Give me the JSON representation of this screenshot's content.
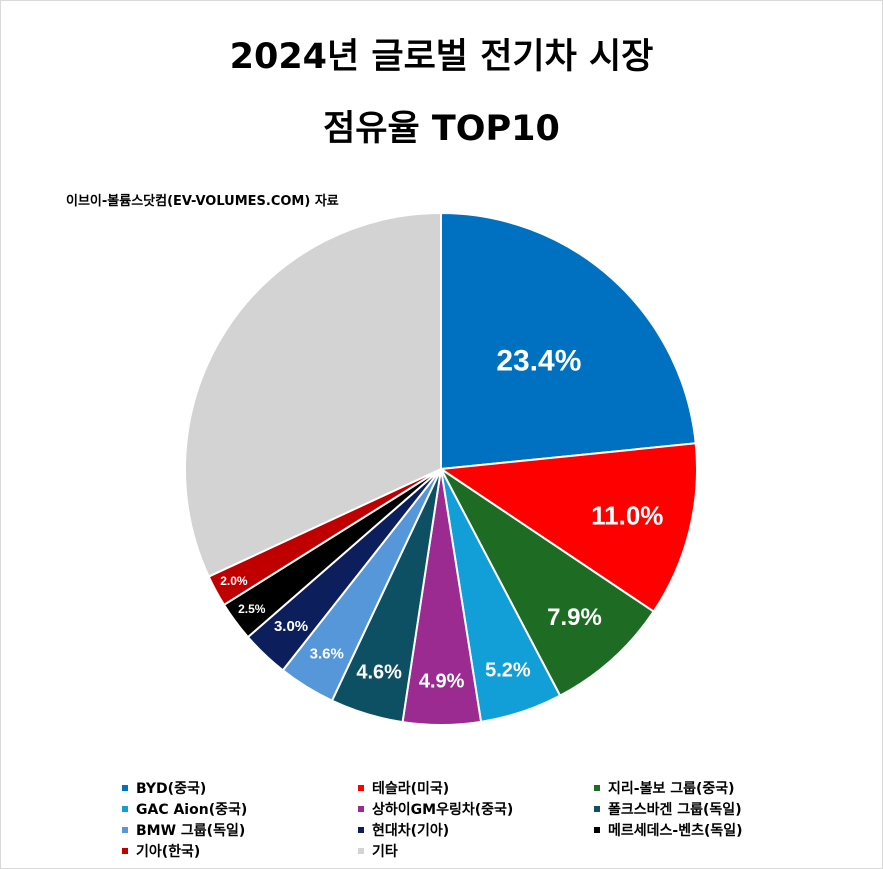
{
  "chart_data": {
    "type": "pie",
    "title_line1": "2024년 글로벌 전기차 시장",
    "title_line2": "점유율 TOP10",
    "source": "이브이-볼륨스닷컴(EV-VOLUMES.COM) 자료",
    "start_angle_deg": 0,
    "direction": "clockwise",
    "slices": [
      {
        "label": "BYD(중국)",
        "value": 23.4,
        "display": "23.4%",
        "color": "#0070c0"
      },
      {
        "label": "테슬라(미국)",
        "value": 11.0,
        "display": "11.0%",
        "color": "#ff0000"
      },
      {
        "label": "지리-볼보 그룹(중국)",
        "value": 7.9,
        "display": "7.9%",
        "color": "#1e6b24"
      },
      {
        "label": "GAC Aion(중국)",
        "value": 5.2,
        "display": "5.2%",
        "color": "#129fd8"
      },
      {
        "label": "상하이GM우링차(중국)",
        "value": 4.9,
        "display": "4.9%",
        "color": "#9b2b91"
      },
      {
        "label": "폴크스바겐 그룹(독일)",
        "value": 4.6,
        "display": "4.6%",
        "color": "#0d4f63"
      },
      {
        "label": "BMW 그룹(독일)",
        "value": 3.6,
        "display": "3.6%",
        "color": "#5597d9"
      },
      {
        "label": "현대차(기아)",
        "value": 3.0,
        "display": "3.0%",
        "color": "#0c1f5c"
      },
      {
        "label": "메르세데스-벤츠(독일)",
        "value": 2.5,
        "display": "2.5%",
        "color": "#000000"
      },
      {
        "label": "기아(한국)",
        "value": 2.0,
        "display": "2.0%",
        "color": "#c00000"
      },
      {
        "label": "기타",
        "value": 31.9,
        "display": "",
        "color": "#d3d3d3"
      }
    ]
  }
}
